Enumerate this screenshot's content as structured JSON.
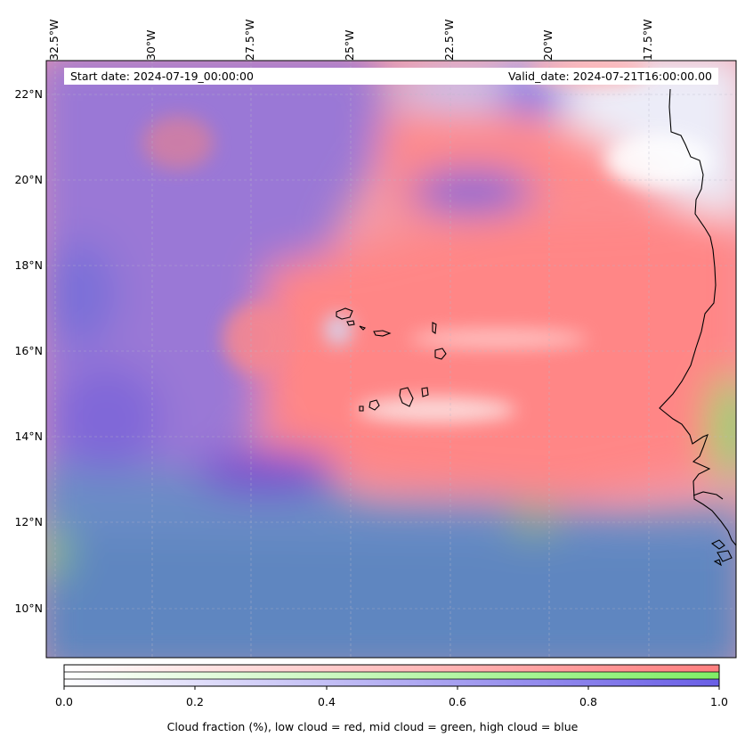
{
  "map": {
    "start_date": "Start date: 2024-07-19_00:00:00",
    "valid_date": "Valid_date: 2024-07-21T16:00:00.00",
    "lon_ticks": [
      "32.5°W",
      "30°W",
      "27.5°W",
      "25°W",
      "22.5°W",
      "20°W",
      "17.5°W"
    ],
    "lat_ticks": [
      "22°N",
      "20°N",
      "18°N",
      "16°N",
      "14°N",
      "12°N",
      "10°N"
    ],
    "extent": {
      "lon_min": -32.6,
      "lon_max": -15.2,
      "lat_min": 8.9,
      "lat_max": 22.8
    },
    "gridlines": "dashed",
    "colors": {
      "low_cloud": "#ff8080",
      "mid_cloud": "#80ff80",
      "high_cloud": "#8080ff"
    }
  },
  "colorbar": {
    "ticks": [
      "0.0",
      "0.2",
      "0.4",
      "0.6",
      "0.8",
      "1.0"
    ],
    "label": "Cloud fraction (%), low cloud = red, mid cloud = green, high cloud = blue",
    "range": [
      0,
      1
    ]
  }
}
